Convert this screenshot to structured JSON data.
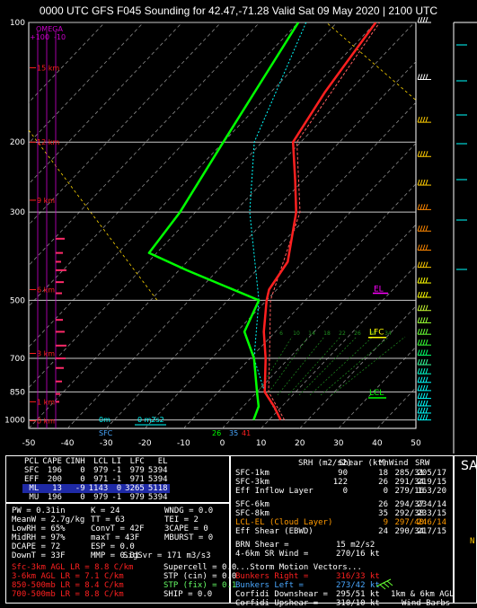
{
  "title": "0000 UTC GFS F045 Sounding for 42.47,-71.28  Valid  Sat 09 May 2020 | 2100 UTC",
  "chart_data": {
    "type": "line",
    "title": "0000 UTC GFS F045 Sounding for 42.47,-71.28  Valid  Sat 09 May 2020 | 2100 UTC",
    "x_axis_ticks": [
      "-50",
      "-40",
      "-30",
      "-20",
      "-10",
      "0",
      "10",
      "20",
      "30",
      "40",
      "50"
    ],
    "y_axis_ticks": [
      "100",
      "200",
      "300",
      "500",
      "700",
      "850",
      "1000"
    ],
    "height_labels": [
      "15 km",
      "12 km",
      "9 km",
      "6 km",
      "3 km",
      "1 km",
      "0 km"
    ],
    "omega_label": "OMEGA",
    "omega_ticks": [
      "+10",
      "0",
      "-10"
    ],
    "series": [
      {
        "name": "temperature",
        "color": "#ff2020",
        "points": [
          [
            1000,
            13
          ],
          [
            925,
            8
          ],
          [
            850,
            2
          ],
          [
            700,
            -6
          ],
          [
            600,
            -13
          ],
          [
            500,
            -20
          ],
          [
            470,
            -22
          ],
          [
            400,
            -24
          ],
          [
            300,
            -34
          ],
          [
            250,
            -42
          ],
          [
            200,
            -52
          ],
          [
            150,
            -56
          ],
          [
            100,
            -60
          ]
        ]
      },
      {
        "name": "dewpoint",
        "color": "#00ff00",
        "points": [
          [
            1000,
            6
          ],
          [
            925,
            4
          ],
          [
            850,
            0
          ],
          [
            700,
            -9
          ],
          [
            600,
            -18
          ],
          [
            500,
            -22
          ],
          [
            420,
            -48
          ],
          [
            380,
            -62
          ],
          [
            300,
            -64
          ],
          [
            200,
            -70
          ],
          [
            100,
            -80
          ]
        ]
      },
      {
        "name": "parcel",
        "color": "#00ffff",
        "points": [
          [
            1000,
            13
          ],
          [
            850,
            2
          ],
          [
            700,
            -9
          ],
          [
            500,
            -22
          ],
          [
            300,
            -46
          ],
          [
            200,
            -62
          ],
          [
            100,
            -78
          ]
        ]
      },
      {
        "name": "virtual temperature",
        "color": "#ff2020",
        "points": [
          [
            1000,
            14
          ],
          [
            850,
            3
          ],
          [
            700,
            -5
          ],
          [
            500,
            -19
          ],
          [
            300,
            -33
          ],
          [
            200,
            -51
          ],
          [
            100,
            -59
          ]
        ]
      }
    ],
    "markers": {
      "el": "EL",
      "lfc": "LFC",
      "lcl": "LCL"
    },
    "bottom_labels": {
      "sfc": "SFC",
      "t_sfc": "26",
      "td_sfc": "35",
      "t_val": "41",
      "hodo_0m": "0m",
      "hodo_srh": "0 m2s2"
    },
    "hail_growth_labels": [
      "6",
      "10",
      "14",
      "18",
      "22",
      "26",
      "30",
      "34"
    ],
    "barb_colors": [
      "#ffffff",
      "#ffffff",
      "#ffcc00",
      "#ffcc00",
      "#ffcc00",
      "#ff8800",
      "#ff8800",
      "#ff8800",
      "#ffcc00",
      "#ffff00",
      "#ffff00",
      "#ccff33",
      "#99ff33",
      "#66ff33",
      "#33ff33",
      "#00ff66",
      "#33ff99",
      "#00ffcc",
      "#00ffff",
      "#00ffff",
      "#00ffff",
      "#00ffff",
      "#00ffff",
      "#00ffff"
    ]
  },
  "parcel_table": {
    "header": [
      "PCL",
      "CAPE",
      "CINH",
      "LCL",
      "LI",
      "LFC",
      "EL"
    ],
    "rows": [
      [
        "SFC",
        "196",
        "0",
        "979",
        "-1",
        "979",
        "5394"
      ],
      [
        "EFF",
        "200",
        "0",
        "971",
        "-1",
        "971",
        "5394"
      ],
      [
        "ML",
        "13",
        "-9",
        "1143",
        "0",
        "3265",
        "5118"
      ],
      [
        "MU",
        "196",
        "0",
        "979",
        "-1",
        "979",
        "5394"
      ]
    ]
  },
  "thermo": {
    "col1": [
      "PW = 0.31in",
      "MeanW = 2.7g/kg",
      "LowRH = 65%",
      "MidRH = 97%",
      "DCAPE = 72",
      "DownT = 33F"
    ],
    "col2": [
      "K = 24",
      "TT = 63",
      "ConvT = 42F",
      "maxT = 43F",
      "ESP = 0.0",
      "MMP = 0.01"
    ],
    "col3": [
      "WNDG = 0.0",
      "TEI = 2",
      "3CAPE = 0",
      "MBURST = 0",
      "",
      ""
    ],
    "sigsvr": "SigSvr = 171 m3/s3"
  },
  "lapse_rates": [
    {
      "text": "Sfc-3km AGL LR = 8.8 C/km",
      "color": "#ff2020"
    },
    {
      "text": "3-6km AGL LR = 7.1 C/km",
      "color": "#ff2020"
    },
    {
      "text": "850-500mb LR = 8.4 C/km",
      "color": "#ff2020"
    },
    {
      "text": "700-500mb LR = 8.8 C/km",
      "color": "#ff2020"
    }
  ],
  "composites": [
    "Supercell = 0.0",
    "STP (cin) = 0.0",
    "STP (fix) = 0.1",
    "SHIP = 0.0"
  ],
  "kinematics": {
    "header": [
      "SRH (m2/s2)",
      "Shear (kt)",
      "MnWind",
      "SRW"
    ],
    "rows": [
      {
        "label": "SFC-1km",
        "srh": "90",
        "shear": "18",
        "mnwind": "285/31",
        "srw": "205/17",
        "color": "#ffffff"
      },
      {
        "label": "SFC-3km",
        "srh": "122",
        "shear": "26",
        "mnwind": "291/34",
        "srw": "219/15",
        "color": "#ffffff"
      },
      {
        "label": "Eff Inflow Layer",
        "srh": "0",
        "shear": "0",
        "mnwind": "279/16",
        "srw": "163/20",
        "color": "#ffffff"
      },
      {
        "label": "SFC-6km",
        "srh": "",
        "shear": "26",
        "mnwind": "294/37",
        "srw": "234/14",
        "color": "#ffffff"
      },
      {
        "label": "SFC-8km",
        "srh": "",
        "shear": "35",
        "mnwind": "292/38",
        "srw": "233/15",
        "color": "#ffffff"
      },
      {
        "label": "LCL-EL (Cloud Layer)",
        "srh": "",
        "shear": "9",
        "mnwind": "297/40",
        "srw": "246/14",
        "color": "#ff9900"
      },
      {
        "label": "Eff Shear (EBWD)",
        "srh": "",
        "shear": "24",
        "mnwind": "290/34",
        "srw": "217/15",
        "color": "#ffffff"
      }
    ],
    "brn_shear": "BRN Shear =",
    "brn_val": "15 m2/s2",
    "sr_wind": "4-6km SR Wind =",
    "sr_val": "270/16 kt",
    "storm_motion": "...Storm Motion Vectors...",
    "vectors": [
      {
        "label": "Bunkers Right =",
        "val": "316/33 kt",
        "color": "#ff2020"
      },
      {
        "label": "Bunkers Left =",
        "val": "273/42 kt",
        "color": "#4aa8ff"
      },
      {
        "label": "Corfidi Downshear =",
        "val": "295/51 kt",
        "color": "#ffffff"
      },
      {
        "label": "Corfidi Upshear =",
        "val": "310/10 kt",
        "color": "#ffffff"
      }
    ],
    "barb_caption_1": "1km & 6km AGL",
    "barb_caption_2": "Wind Barbs"
  },
  "side_label": "SA",
  "side_label_2": "N"
}
